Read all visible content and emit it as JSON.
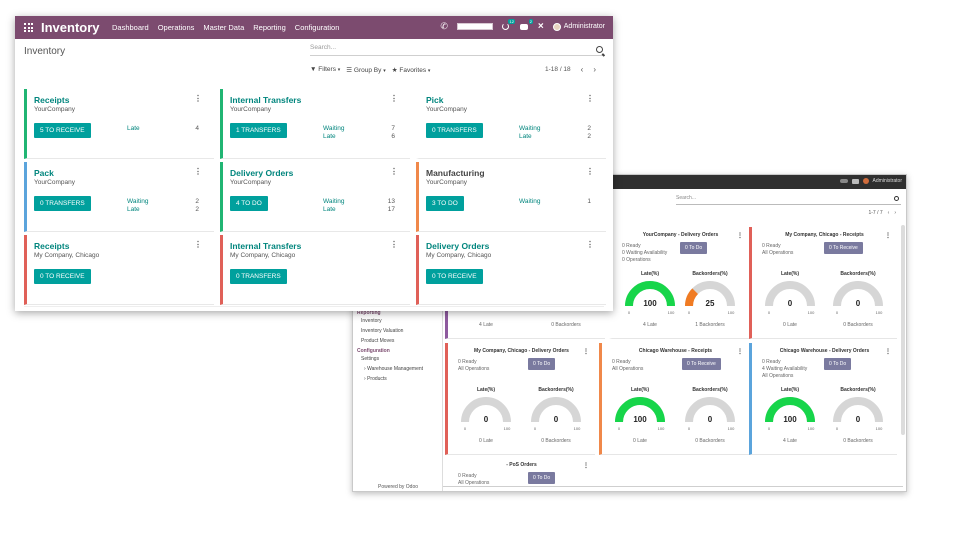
{
  "front": {
    "brand": "Inventory",
    "menu": [
      "Dashboard",
      "Operations",
      "Master Data",
      "Reporting",
      "Configuration"
    ],
    "user": "Administrator",
    "badges": {
      "activity": "12",
      "messages": "2"
    },
    "page_title": "Inventory",
    "search_placeholder": "Search...",
    "filters": {
      "filters": "Filters",
      "group_by": "Group By",
      "favorites": "Favorites"
    },
    "pager": "1-18 / 18",
    "colors": {
      "navbar": "#7c4b6f",
      "button": "#00a09d",
      "link": "#00857d",
      "green": "#20b573",
      "blue": "#5ba4dc",
      "orange": "#f0884a",
      "red": "#e06058"
    },
    "cards": [
      {
        "title": "Receipts",
        "company": "YourCompany",
        "button": "5 TO RECEIVE",
        "stats": [
          {
            "label": "Late",
            "value": "4"
          }
        ]
      },
      {
        "title": "Internal Transfers",
        "company": "YourCompany",
        "button": "1 TRANSFERS",
        "stats": [
          {
            "label": "Waiting",
            "value": "7"
          },
          {
            "label": "Late",
            "value": "6"
          }
        ]
      },
      {
        "title": "Pick",
        "company": "YourCompany",
        "button": "0 TRANSFERS",
        "stats": [
          {
            "label": "Waiting",
            "value": "2"
          },
          {
            "label": "Late",
            "value": "2"
          }
        ]
      },
      {
        "title": "Pack",
        "company": "YourCompany",
        "button": "0 TRANSFERS",
        "stats": [
          {
            "label": "Waiting",
            "value": "2"
          },
          {
            "label": "Late",
            "value": "2"
          }
        ]
      },
      {
        "title": "Delivery Orders",
        "company": "YourCompany",
        "button": "4 TO DO",
        "stats": [
          {
            "label": "Waiting",
            "value": "13"
          },
          {
            "label": "Late",
            "value": "17"
          }
        ]
      },
      {
        "title": "Manufacturing",
        "company": "YourCompany",
        "button": "3 TO DO",
        "stats": [
          {
            "label": "Waiting",
            "value": "1"
          }
        ]
      },
      {
        "title": "Receipts",
        "company": "My Company, Chicago",
        "button": "0 TO RECEIVE",
        "stats": []
      },
      {
        "title": "Internal Transfers",
        "company": "My Company, Chicago",
        "button": "0 TRANSFERS",
        "stats": []
      },
      {
        "title": "Delivery Orders",
        "company": "My Company, Chicago",
        "button": "0 TO RECEIVE",
        "stats": []
      }
    ]
  },
  "background": {
    "user": "Administrator",
    "search_placeholder": "Search...",
    "pager": "1-7 / 7",
    "sidebar": {
      "reporting": "Reporting",
      "items_reporting": [
        "Inventory",
        "Inventory Valuation",
        "Product Moves"
      ],
      "configuration": "Configuration",
      "items_configuration": [
        "Settings",
        "Warehouse Management",
        "Products"
      ]
    },
    "powered_by": "Powered by Odoo",
    "gauge_labels": {
      "late": "Late(%)",
      "backorders": "Backorders(%)",
      "min": "0",
      "max": "100"
    },
    "cards": [
      {
        "title": "YourCompany - Delivery Orders",
        "info": [
          "0 Ready",
          "0 Waiting Availability",
          "0 Operations"
        ],
        "button": "0 To Do",
        "late_value": 100,
        "back_value": 25,
        "foot_late": "4 Late",
        "foot_back": "1 Backorders"
      },
      {
        "title": "My Company, Chicago - Receipts",
        "info": [
          "0 Ready",
          "All Operations"
        ],
        "button": "0 To Receive",
        "late_value": 0,
        "back_value": 0,
        "foot_late": "0 Late",
        "foot_back": "0 Backorders"
      },
      {
        "title": "My Company, Chicago - Delivery Orders",
        "info": [
          "0 Ready",
          "All Operations"
        ],
        "button": "0 To Do",
        "late_value": 0,
        "back_value": 0,
        "foot_late": "0 Late",
        "foot_back": "0 Backorders"
      },
      {
        "title": "Chicago Warehouse - Receipts",
        "info": [
          "0 Ready",
          "All Operations"
        ],
        "button": "0 To Receive",
        "late_value": 100,
        "back_value": 0,
        "foot_late": "0 Late",
        "foot_back": "0 Backorders"
      },
      {
        "title": "Chicago Warehouse - Delivery Orders",
        "info": [
          "0 Ready",
          "4 Waiting Availability",
          "All Operations"
        ],
        "button": "0 To Do",
        "late_value": 100,
        "back_value": 0,
        "foot_late": "4 Late",
        "foot_back": "0 Backorders"
      },
      {
        "title": "- PoS Orders",
        "info": [
          "0 Ready",
          "All Operations"
        ],
        "button": "0 To Do"
      }
    ],
    "partial_card": {
      "foot_late": "4 Late",
      "foot_back": "0 Backorders"
    }
  }
}
